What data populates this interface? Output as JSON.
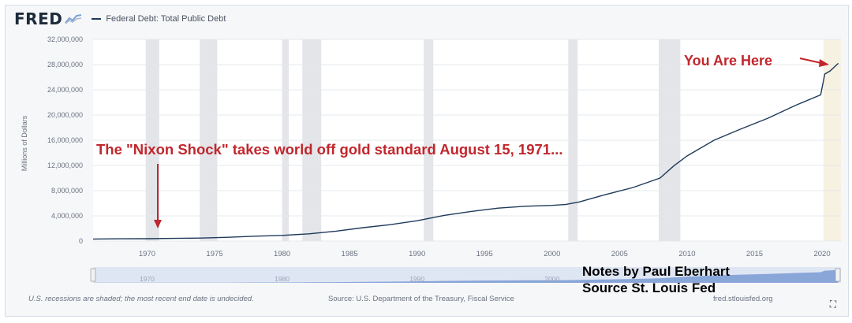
{
  "header": {
    "logo": "FRED",
    "legend_label": "Federal Debt: Total Public Debt"
  },
  "annotations": {
    "nixon": "The \"Nixon Shock\" takes world off gold standard August 15, 1971...",
    "here": "You Are Here"
  },
  "notes": {
    "line1": "Notes by Paul Eberhart",
    "line2": "Source St. Louis Fed"
  },
  "footer": {
    "recessions": "U.S. recessions are shaded; the most recent end date is undecided.",
    "source": "Source: U.S. Department of the Treasury, Fiscal Service",
    "site": "fred.stlouisfed.org"
  },
  "colors": {
    "line": "#1f3a5a",
    "annotation": "#c1272d",
    "recession": "#e3e5e9",
    "navigator": "#7f9fd6"
  },
  "icons": {
    "expand": "expand-icon"
  },
  "chart_data": {
    "type": "line",
    "title": "",
    "xlabel": "",
    "ylabel": "Millions of Dollars",
    "xlim": [
      1966,
      2021.4
    ],
    "ylim": [
      0,
      32000000
    ],
    "grid": true,
    "legend": "top-left",
    "x_ticks": [
      "1970",
      "1975",
      "1980",
      "1985",
      "1990",
      "1995",
      "2000",
      "2005",
      "2010",
      "2015",
      "2020"
    ],
    "y_ticks": [
      "0",
      "4,000,000",
      "8,000,000",
      "12,000,000",
      "16,000,000",
      "20,000,000",
      "24,000,000",
      "28,000,000",
      "32,000,000"
    ],
    "navigator_ticks": [
      "1970",
      "1980",
      "1990",
      "2000"
    ],
    "recessions": [
      [
        1969.9,
        1970.9
      ],
      [
        1973.9,
        1975.2
      ],
      [
        1980.0,
        1980.5
      ],
      [
        1981.5,
        1982.9
      ],
      [
        1990.5,
        1991.2
      ],
      [
        2001.2,
        2001.9
      ],
      [
        2007.9,
        2009.5
      ],
      [
        2020.1,
        2021.4
      ]
    ],
    "series": [
      {
        "name": "Federal Debt: Total Public Debt",
        "x": [
          1966,
          1968,
          1970,
          1972,
          1974,
          1976,
          1978,
          1980,
          1982,
          1984,
          1986,
          1988,
          1990,
          1992,
          1994,
          1996,
          1998,
          2000,
          2001,
          2002,
          2004,
          2006,
          2008,
          2009,
          2010,
          2012,
          2014,
          2016,
          2018,
          2019.9,
          2020.2,
          2020.6,
          2021.2
        ],
        "y": [
          320000,
          360000,
          380000,
          430000,
          480000,
          600000,
          780000,
          900000,
          1150000,
          1570000,
          2130000,
          2600000,
          3230000,
          4070000,
          4700000,
          5230000,
          5530000,
          5660000,
          5800000,
          6200000,
          7400000,
          8500000,
          10000000,
          11900000,
          13500000,
          16000000,
          17800000,
          19500000,
          21500000,
          23200000,
          26500000,
          27000000,
          28200000
        ]
      }
    ]
  }
}
